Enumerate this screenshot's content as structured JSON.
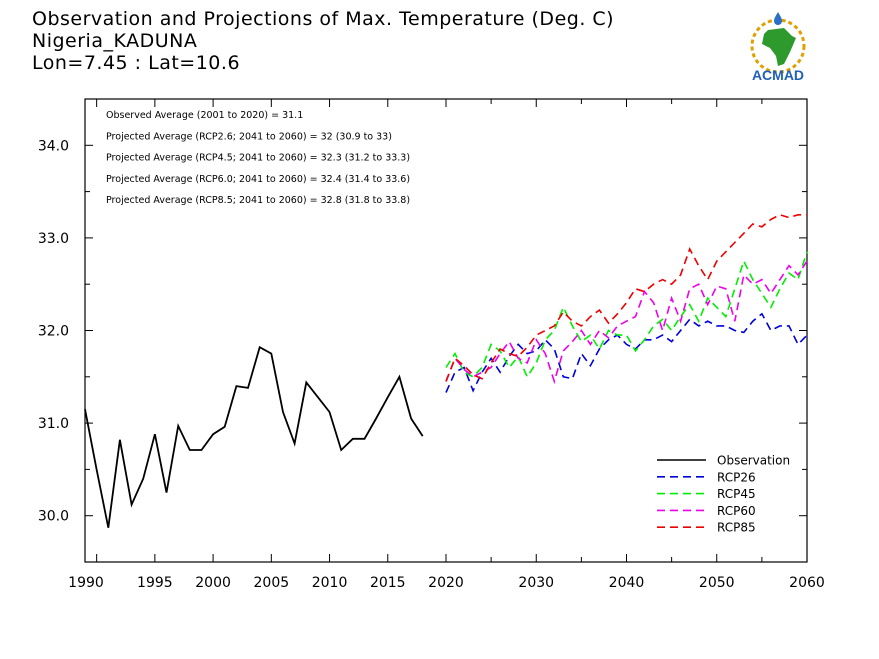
{
  "header": {
    "title": "Observation and Projections of Max. Temperature (Deg. C)",
    "location": "Nigeria_KADUNA",
    "coords": "Lon=7.45 : Lat=10.6"
  },
  "logo": {
    "text": "ACMAD",
    "icon": "africa-map-logo-icon"
  },
  "colors": {
    "Observation": "#000000",
    "RCP26": "#0000dd",
    "RCP45": "#00ee00",
    "RCP60": "#ee00ee",
    "RCP85": "#ee0000"
  },
  "chart_data": {
    "type": "line",
    "title": "Observation and Projections of Max. Temperature (Deg. C)",
    "ylim": [
      29.5,
      34.5
    ],
    "yticks": [
      "30.0",
      "31.0",
      "32.0",
      "33.0",
      "34.0"
    ],
    "xticks_obs": [
      "1990",
      "1995",
      "2000",
      "2005",
      "2010",
      "2015",
      "2020"
    ],
    "xticks_proj": [
      "2030",
      "2040",
      "2050",
      "2060"
    ],
    "annotations": [
      "Observed Average (2001 to 2020) = 31.1",
      "Projected Average (RCP2.6; 2041 to 2060) = 32 (30.9 to 33)",
      "Projected Average (RCP4.5; 2041 to 2060) = 32.3 (31.2 to 33.3)",
      "Projected Average (RCP6.0; 2041 to 2060) = 32.4 (31.4 to 33.6)",
      "Projected Average (RCP8.5; 2041 to 2060) = 32.8 (31.8 to 33.8)"
    ],
    "legend": [
      "Observation",
      "RCP26",
      "RCP45",
      "RCP60",
      "RCP85"
    ],
    "series": [
      {
        "name": "Observation",
        "x": [
          1989,
          1990,
          1991,
          1992,
          1993,
          1994,
          1995,
          1996,
          1997,
          1998,
          1999,
          2000,
          2001,
          2002,
          2003,
          2004,
          2005,
          2006,
          2007,
          2008,
          2009,
          2010,
          2011,
          2012,
          2013,
          2014,
          2015,
          2016,
          2017,
          2018,
          2019
        ],
        "values": [
          31.15,
          30.5,
          29.87,
          30.82,
          30.12,
          30.4,
          30.88,
          30.25,
          30.97,
          30.71,
          30.71,
          30.88,
          30.96,
          31.4,
          31.38,
          31.82,
          31.75,
          31.12,
          30.78,
          31.44,
          31.28,
          31.12,
          30.71,
          30.83,
          30.83,
          31.05,
          31.28,
          31.5,
          31.05,
          30.86,
          null
        ]
      },
      {
        "name": "RCP26",
        "x": [
          2020,
          2021,
          2022,
          2023,
          2024,
          2025,
          2026,
          2027,
          2028,
          2029,
          2030,
          2031,
          2032,
          2033,
          2034,
          2035,
          2036,
          2037,
          2038,
          2039,
          2040,
          2041,
          2042,
          2043,
          2044,
          2045,
          2046,
          2047,
          2048,
          2049,
          2050,
          2051,
          2052,
          2053,
          2054,
          2055,
          2056,
          2057,
          2058,
          2059,
          2060
        ],
        "values": [
          31.33,
          31.55,
          31.6,
          31.35,
          31.55,
          31.7,
          31.55,
          31.72,
          31.85,
          31.75,
          31.78,
          31.9,
          31.8,
          31.5,
          31.48,
          31.75,
          31.62,
          31.8,
          31.9,
          31.95,
          31.85,
          31.8,
          31.9,
          31.9,
          31.95,
          31.88,
          32.0,
          32.12,
          32.05,
          32.1,
          32.05,
          32.05,
          32.0,
          31.98,
          32.1,
          32.18,
          32.0,
          32.05,
          32.05,
          31.85,
          31.95
        ]
      },
      {
        "name": "RCP45",
        "x": [
          2020,
          2021,
          2022,
          2023,
          2024,
          2025,
          2026,
          2027,
          2028,
          2029,
          2030,
          2031,
          2032,
          2033,
          2034,
          2035,
          2036,
          2037,
          2038,
          2039,
          2040,
          2041,
          2042,
          2043,
          2044,
          2045,
          2046,
          2047,
          2048,
          2049,
          2050,
          2051,
          2052,
          2053,
          2054,
          2055,
          2056,
          2057,
          2058,
          2059,
          2060
        ],
        "values": [
          31.6,
          31.75,
          31.55,
          31.5,
          31.6,
          31.85,
          31.78,
          31.6,
          31.72,
          31.5,
          31.65,
          31.9,
          32.0,
          32.25,
          32.05,
          31.88,
          31.95,
          31.8,
          32.0,
          31.95,
          31.95,
          31.78,
          31.9,
          32.05,
          32.12,
          32.0,
          32.15,
          32.28,
          32.1,
          32.35,
          32.25,
          32.15,
          32.45,
          32.75,
          32.55,
          32.4,
          32.25,
          32.45,
          32.62,
          32.55,
          32.85
        ]
      },
      {
        "name": "RCP60",
        "x": [
          2020,
          2021,
          2022,
          2023,
          2024,
          2025,
          2026,
          2027,
          2028,
          2029,
          2030,
          2031,
          2032,
          2033,
          2034,
          2035,
          2036,
          2037,
          2038,
          2039,
          2040,
          2041,
          2042,
          2043,
          2044,
          2045,
          2046,
          2047,
          2048,
          2049,
          2050,
          2051,
          2052,
          2053,
          2054,
          2055,
          2056,
          2057,
          2058,
          2059,
          2060
        ],
        "values": [
          31.45,
          31.7,
          31.58,
          31.5,
          31.55,
          31.6,
          31.75,
          31.88,
          31.7,
          31.65,
          31.9,
          31.75,
          31.45,
          31.78,
          31.88,
          32.0,
          31.85,
          32.0,
          31.92,
          32.05,
          32.1,
          32.15,
          32.42,
          32.3,
          32.0,
          32.35,
          32.1,
          32.45,
          32.5,
          32.28,
          32.48,
          32.45,
          32.1,
          32.6,
          32.5,
          32.55,
          32.4,
          32.55,
          32.7,
          32.6,
          32.75
        ]
      },
      {
        "name": "RCP85",
        "x": [
          2020,
          2021,
          2022,
          2023,
          2024,
          2025,
          2026,
          2027,
          2028,
          2029,
          2030,
          2031,
          2032,
          2033,
          2034,
          2035,
          2036,
          2037,
          2038,
          2039,
          2040,
          2041,
          2042,
          2043,
          2044,
          2045,
          2046,
          2047,
          2048,
          2049,
          2050,
          2051,
          2052,
          2053,
          2054,
          2055,
          2056,
          2057,
          2058,
          2059,
          2060
        ],
        "values": [
          31.45,
          31.7,
          31.62,
          31.52,
          31.48,
          31.65,
          31.8,
          31.75,
          31.72,
          31.82,
          31.95,
          32.0,
          32.05,
          32.2,
          32.1,
          32.05,
          32.15,
          32.22,
          32.08,
          32.18,
          32.3,
          32.45,
          32.42,
          32.5,
          32.55,
          32.5,
          32.6,
          32.88,
          32.7,
          32.55,
          32.75,
          32.85,
          32.95,
          33.05,
          33.15,
          33.12,
          33.2,
          33.25,
          33.22,
          33.25,
          33.25
        ]
      }
    ]
  }
}
